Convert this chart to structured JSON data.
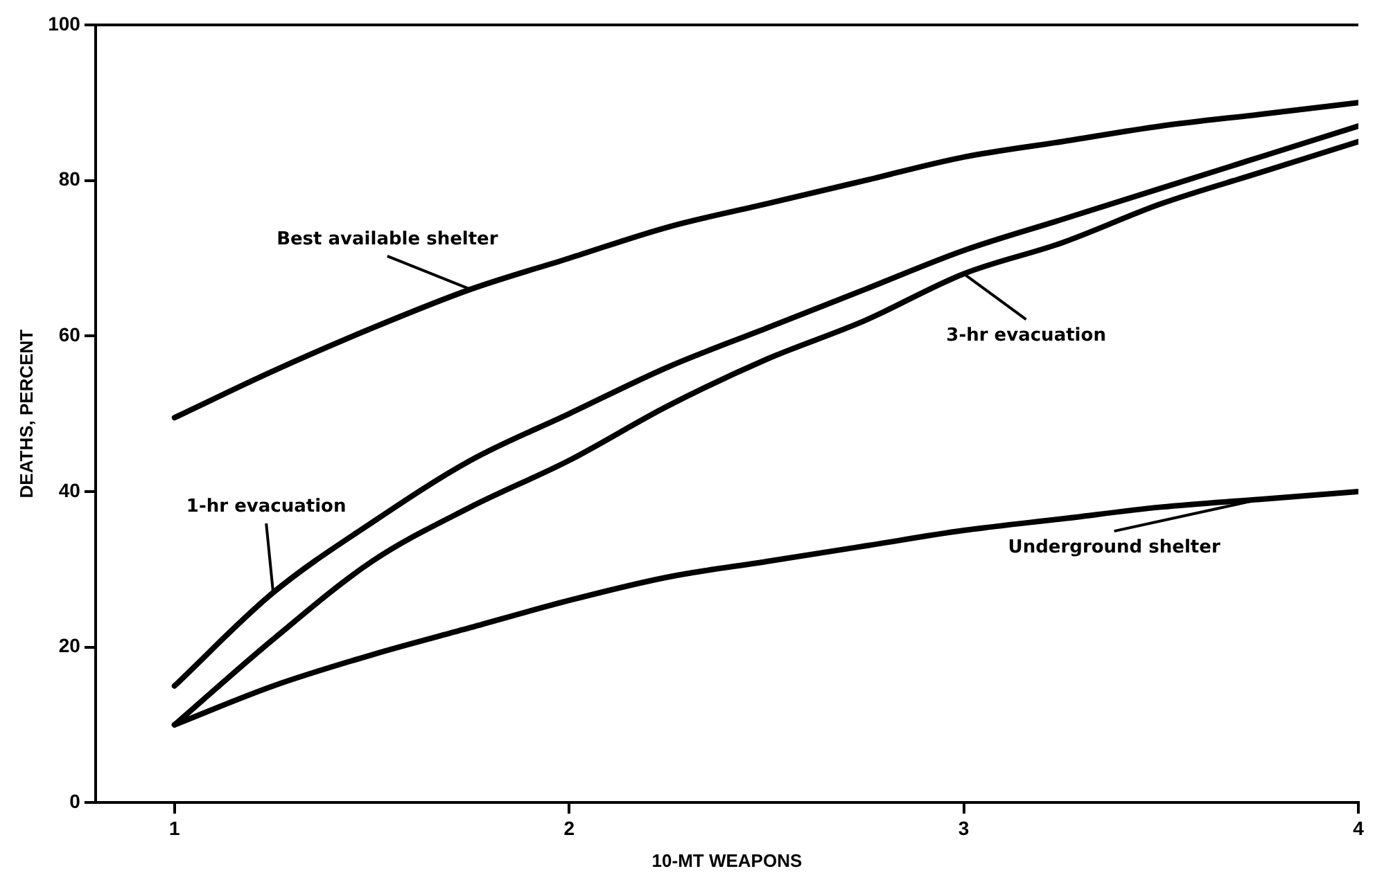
{
  "chart_data": {
    "type": "line",
    "xlabel": "10-MT WEAPONS",
    "ylabel": "DEATHS, PERCENT",
    "x": [
      1,
      1.25,
      1.5,
      1.75,
      2,
      2.25,
      2.5,
      2.75,
      3,
      3.25,
      3.5,
      3.75,
      4
    ],
    "xlim": [
      0.8,
      4
    ],
    "xticks": [
      1,
      2,
      3,
      4
    ],
    "ylim": [
      0,
      100
    ],
    "yticks": [
      0,
      20,
      40,
      60,
      80,
      100
    ],
    "grid": false,
    "legend": false,
    "marker": "none",
    "line_style": "solid",
    "series": [
      {
        "name": "Best available shelter",
        "color": "#000000",
        "values": [
          49.5,
          55.5,
          61,
          66,
          70,
          74,
          77,
          80,
          83,
          85,
          87,
          88.5,
          90
        ]
      },
      {
        "name": "1-hr evacuation",
        "color": "#000000",
        "values": [
          15,
          27,
          36,
          44,
          50,
          56,
          61,
          66,
          71,
          75,
          79,
          83,
          87
        ]
      },
      {
        "name": "3-hr evacuation",
        "color": "#000000",
        "values": [
          10,
          21,
          31,
          38,
          44,
          51,
          57,
          62,
          68,
          72,
          77,
          81,
          85
        ]
      },
      {
        "name": "Underground shelter",
        "color": "#000000",
        "values": [
          10,
          15,
          19,
          22.5,
          26,
          29,
          31,
          33,
          35,
          36.5,
          38,
          39,
          40
        ]
      }
    ]
  }
}
